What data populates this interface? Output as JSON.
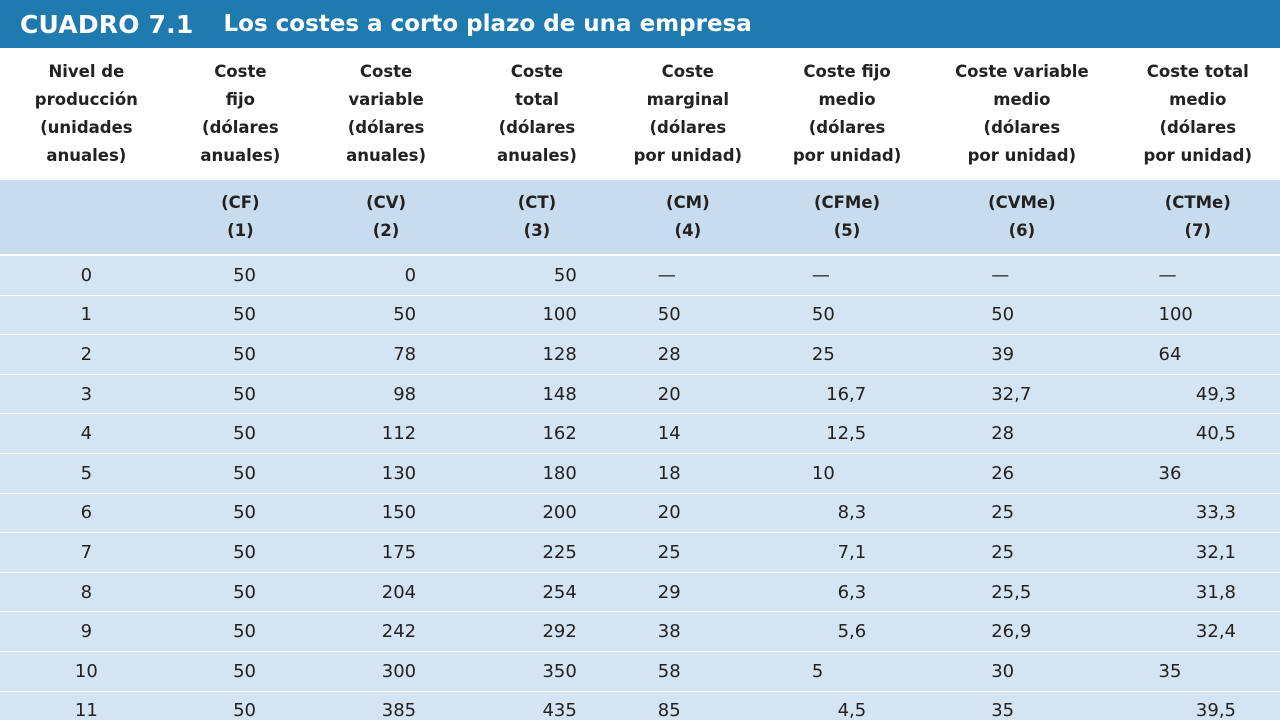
{
  "title": {
    "number": "CUADRO 7.1",
    "text": "Los costes a corto plazo de una empresa"
  },
  "header": {
    "columns": [
      [
        "Nivel de",
        "producción",
        "(unidades",
        "anuales)"
      ],
      [
        "Coste",
        "fijo",
        "(dólares",
        "anuales)"
      ],
      [
        "Coste",
        "variable",
        "(dólares",
        "anuales)"
      ],
      [
        "Coste",
        "total",
        "(dólares",
        "anuales)"
      ],
      [
        "Coste",
        "marginal",
        "(dólares",
        "por unidad)"
      ],
      [
        "Coste fijo",
        "medio",
        "(dólares",
        "por unidad)"
      ],
      [
        "Coste variable",
        "medio",
        "(dólares",
        "por unidad)"
      ],
      [
        "Coste total",
        "medio",
        "(dólares",
        "por unidad)"
      ]
    ],
    "codes": [
      [
        "",
        ""
      ],
      [
        "(CF)",
        "(1)"
      ],
      [
        "(CV)",
        "(2)"
      ],
      [
        "(CT)",
        "(3)"
      ],
      [
        "(CM)",
        "(4)"
      ],
      [
        "(CFMe)",
        "(5)"
      ],
      [
        "(CVMe)",
        "(6)"
      ],
      [
        "(CTMe)",
        "(7)"
      ]
    ]
  },
  "rows": [
    [
      "0",
      "50",
      "0",
      "50",
      "—",
      "—",
      "—",
      "—"
    ],
    [
      "1",
      "50",
      "50",
      "100",
      "50",
      "50",
      "50",
      "100"
    ],
    [
      "2",
      "50",
      "78",
      "128",
      "28",
      "25",
      "39",
      "64"
    ],
    [
      "3",
      "50",
      "98",
      "148",
      "20",
      "16,7",
      "32,7",
      "49,3"
    ],
    [
      "4",
      "50",
      "112",
      "162",
      "14",
      "12,5",
      "28",
      "40,5"
    ],
    [
      "5",
      "50",
      "130",
      "180",
      "18",
      "10",
      "26",
      "36"
    ],
    [
      "6",
      "50",
      "150",
      "200",
      "20",
      "8,3",
      "25",
      "33,3"
    ],
    [
      "7",
      "50",
      "175",
      "225",
      "25",
      "7,1",
      "25",
      "32,1"
    ],
    [
      "8",
      "50",
      "204",
      "254",
      "29",
      "6,3",
      "25,5",
      "31,8"
    ],
    [
      "9",
      "50",
      "242",
      "292",
      "38",
      "5,6",
      "26,9",
      "32,4"
    ],
    [
      "10",
      "50",
      "300",
      "350",
      "58",
      "5",
      "30",
      "35"
    ],
    [
      "11",
      "50",
      "385",
      "435",
      "85",
      "4,5",
      "35",
      "39,5"
    ]
  ],
  "colors": {
    "title_bar": "#1f7ab0",
    "row_fill": "#d5e4f2",
    "code_row_fill": "#c8dcee"
  }
}
